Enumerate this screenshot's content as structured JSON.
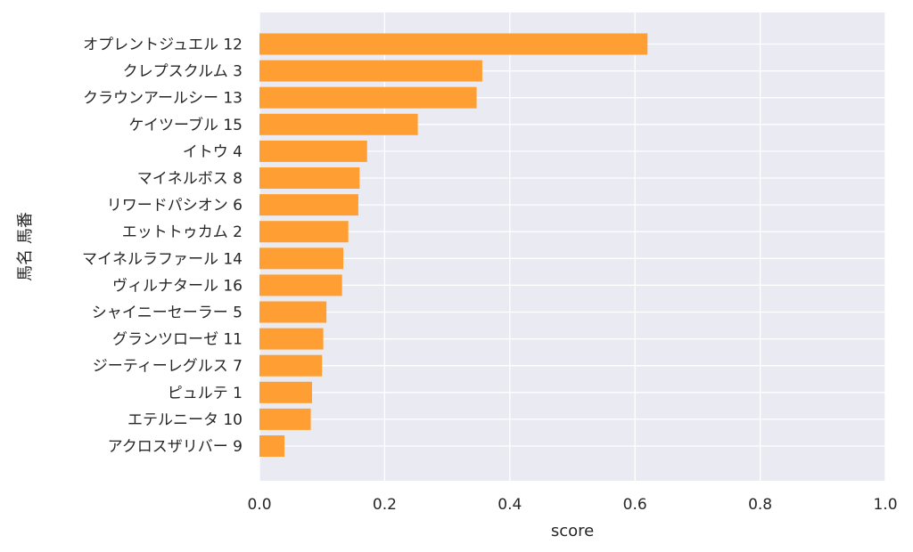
{
  "chart_data": {
    "type": "bar",
    "orientation": "horizontal",
    "categories": [
      "オプレントジュエル 12",
      "クレプスクルム 3",
      "クラウンアールシー 13",
      "ケイツーブル 15",
      "イトウ 4",
      "マイネルボス 8",
      "リワードパシオン 6",
      "エットトゥカム 2",
      "マイネルラファール 14",
      "ヴィルナタール 16",
      "シャイニーセーラー 5",
      "グランツローゼ 11",
      "ジーティーレグルス 7",
      "ピュルテ 1",
      "エテルニータ 10",
      "アクロスザリバー 9"
    ],
    "values": [
      0.62,
      0.356,
      0.347,
      0.253,
      0.172,
      0.16,
      0.158,
      0.142,
      0.134,
      0.132,
      0.107,
      0.102,
      0.1,
      0.084,
      0.082,
      0.04
    ],
    "xlabel": "score",
    "ylabel": "馬名 馬番",
    "xlim": [
      0,
      1.0
    ],
    "xticks": [
      "0.0",
      "0.2",
      "0.4",
      "0.6",
      "0.8",
      "1.0"
    ],
    "grid": true,
    "colors": {
      "bar": "#ff9f33",
      "plot_background": "#eaeaf2",
      "grid": "#ffffff",
      "text": "#262626"
    }
  }
}
